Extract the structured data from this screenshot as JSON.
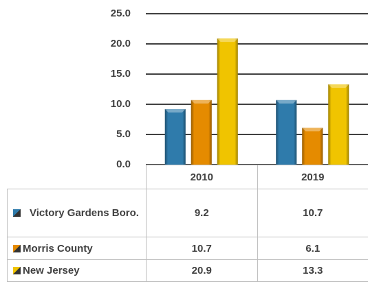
{
  "chart_data": {
    "type": "bar",
    "categories": [
      "2010",
      "2019"
    ],
    "series": [
      {
        "name": "Victory Gardens Boro.",
        "color": "#2f7bab",
        "values": [
          9.2,
          10.7
        ]
      },
      {
        "name": "Morris County",
        "color": "#e58b00",
        "values": [
          10.7,
          6.1
        ]
      },
      {
        "name": "New Jersey",
        "color": "#f0c400",
        "values": [
          20.9,
          13.3
        ]
      }
    ],
    "ylim": [
      0,
      25
    ],
    "yticks": [
      {
        "value": 0,
        "label": "0.0"
      },
      {
        "value": 5,
        "label": "5.0"
      },
      {
        "value": 10,
        "label": "10.0"
      },
      {
        "value": 15,
        "label": "15.0"
      },
      {
        "value": 20,
        "label": "20.0"
      },
      {
        "value": 25,
        "label": "25.0"
      }
    ],
    "grid": true
  }
}
